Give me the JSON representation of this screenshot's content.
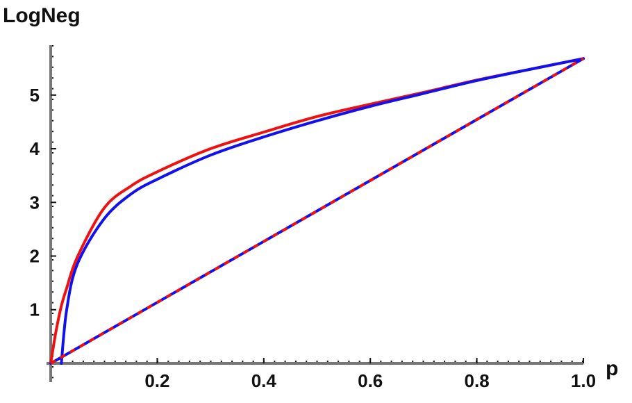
{
  "chart_data": {
    "type": "line",
    "y_label": "LogNeg",
    "x_label": "p",
    "xlim": [
      0,
      1
    ],
    "ylim": [
      -0.35,
      5.93
    ],
    "xticks": [
      0.2,
      0.4,
      0.6,
      0.8,
      {
        "value": 1,
        "label": "1.0"
      }
    ],
    "yticks": [
      1,
      2,
      3,
      4,
      5
    ],
    "series": [
      {
        "color": "#ee1111",
        "style": "solid",
        "x": [
          0,
          0.01,
          0.02,
          0.03,
          0.05,
          0.1,
          0.15,
          0.2,
          0.3,
          0.4,
          0.5,
          0.6,
          0.7,
          0.8,
          0.9,
          1
        ],
        "values": [
          0,
          0.6,
          1.07,
          1.4,
          1.98,
          2.89,
          3.3,
          3.57,
          4.0,
          4.31,
          4.6,
          4.83,
          5.05,
          5.28,
          5.48,
          5.68
        ]
      },
      {
        "color": "#1111ee",
        "style": "solid",
        "x": [
          0.02,
          0.03,
          0.05,
          0.1,
          0.15,
          0.2,
          0.3,
          0.4,
          0.5,
          0.6,
          0.7,
          0.8,
          0.9,
          1
        ],
        "values": [
          0,
          1.0,
          1.85,
          2.69,
          3.15,
          3.43,
          3.88,
          4.22,
          4.52,
          4.79,
          5.03,
          5.27,
          5.48,
          5.68
        ]
      },
      {
        "color": "#1111ee",
        "dash_color": "#ee1111",
        "style": "dashed",
        "x": [
          0,
          1
        ],
        "values": [
          0,
          5.68
        ]
      }
    ]
  }
}
